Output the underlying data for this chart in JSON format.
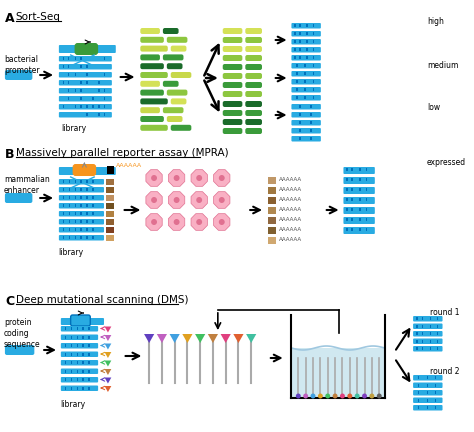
{
  "panel_A_label": "A",
  "panel_B_label": "B",
  "panel_C_label": "C",
  "sort_seq_label": "Sort-Seq",
  "mpra_label": "Massively parallel reporter assay (MPRA)",
  "dms_label": "Deep mutational scanning (DMS)",
  "bacterial_promoter": "bacterial\npromoter",
  "mammalian_enhancer": "mammalian\nenhancer",
  "protein_coding": "protein\ncoding\nsequence",
  "library_label": "library",
  "high_label": "high",
  "medium_label": "medium",
  "low_label": "low",
  "expressed_label": "expressed",
  "round1_label": "round 1",
  "round2_label": "round 2",
  "cyan": "#29ABE2",
  "dark_cyan": "#0071BC",
  "green_dark": "#1a6b2a",
  "green_mid": "#3a9b3a",
  "green_light": "#8dc63f",
  "green_yellow": "#c8d84a",
  "yellow_green": "#d4e157",
  "orange": "#F7941D",
  "brown": "#8B6914",
  "pink": "#F7A8C4",
  "pink_dark": "#E07090",
  "gray_light": "#d0e8f0",
  "bg": "#ffffff"
}
